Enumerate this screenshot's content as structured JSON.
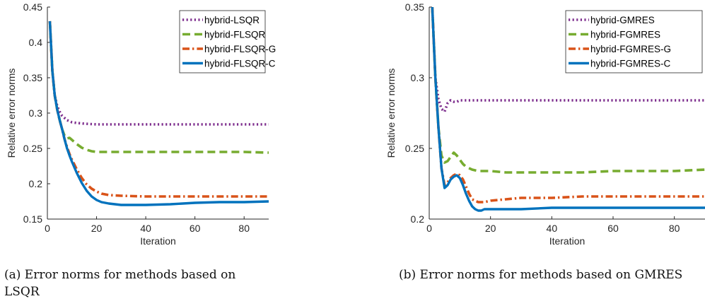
{
  "chart_data": [
    {
      "type": "line",
      "ylabel": "Relative error norms",
      "xlabel": "Iteration",
      "xlim": [
        0,
        90
      ],
      "ylim": [
        0.15,
        0.45
      ],
      "xticks": [
        0,
        20,
        40,
        60,
        80
      ],
      "yticks": [
        0.15,
        0.2,
        0.25,
        0.3,
        0.35,
        0.4,
        0.45
      ],
      "ytick_labels": [
        "0.15",
        "0.2",
        "0.25",
        "0.3",
        "0.35",
        "0.4",
        "0.45"
      ],
      "legend_position": "top-right",
      "grid": false,
      "caption": "(a) Error norms for methods based on LSQR",
      "series": [
        {
          "name": "hybrid-LSQR",
          "color": "#7e2f8e",
          "style": "dotted",
          "x": [
            1,
            2,
            3,
            4,
            5,
            6,
            8,
            10,
            12,
            15,
            20,
            25,
            30,
            40,
            50,
            60,
            70,
            80,
            90
          ],
          "y": [
            0.43,
            0.36,
            0.325,
            0.31,
            0.302,
            0.296,
            0.29,
            0.287,
            0.286,
            0.285,
            0.284,
            0.284,
            0.284,
            0.284,
            0.284,
            0.284,
            0.284,
            0.284,
            0.284
          ]
        },
        {
          "name": "hybrid-FLSQR",
          "color": "#77ac30",
          "style": "dashed",
          "x": [
            1,
            2,
            3,
            4,
            5,
            6,
            7,
            8,
            9,
            10,
            12,
            14,
            16,
            18,
            20,
            25,
            30,
            40,
            50,
            60,
            70,
            80,
            90
          ],
          "y": [
            0.43,
            0.36,
            0.325,
            0.305,
            0.29,
            0.277,
            0.268,
            0.264,
            0.265,
            0.262,
            0.256,
            0.251,
            0.248,
            0.246,
            0.245,
            0.245,
            0.245,
            0.245,
            0.245,
            0.245,
            0.245,
            0.245,
            0.244
          ]
        },
        {
          "name": "hybrid-FLSQR-G",
          "color": "#d95319",
          "style": "dashdot",
          "x": [
            1,
            2,
            3,
            4,
            5,
            6,
            7,
            8,
            9,
            10,
            12,
            14,
            16,
            18,
            20,
            22,
            25,
            30,
            40,
            50,
            60,
            70,
            80,
            90
          ],
          "y": [
            0.43,
            0.36,
            0.325,
            0.305,
            0.29,
            0.277,
            0.263,
            0.252,
            0.242,
            0.234,
            0.22,
            0.208,
            0.199,
            0.193,
            0.189,
            0.186,
            0.184,
            0.183,
            0.182,
            0.182,
            0.182,
            0.182,
            0.182,
            0.182
          ]
        },
        {
          "name": "hybrid-FLSQR-C",
          "color": "#0072bd",
          "style": "solid",
          "x": [
            1,
            2,
            3,
            4,
            5,
            6,
            7,
            8,
            9,
            10,
            12,
            14,
            16,
            18,
            20,
            22,
            25,
            30,
            35,
            40,
            50,
            60,
            70,
            80,
            90
          ],
          "y": [
            0.43,
            0.36,
            0.325,
            0.305,
            0.29,
            0.277,
            0.263,
            0.25,
            0.24,
            0.231,
            0.215,
            0.201,
            0.19,
            0.182,
            0.177,
            0.174,
            0.172,
            0.17,
            0.17,
            0.17,
            0.171,
            0.173,
            0.174,
            0.174,
            0.175
          ]
        }
      ]
    },
    {
      "type": "line",
      "ylabel": "Relative error norms",
      "xlabel": "Iteration",
      "xlim": [
        0,
        90
      ],
      "ylim": [
        0.2,
        0.35
      ],
      "xticks": [
        0,
        20,
        40,
        60,
        80
      ],
      "yticks": [
        0.2,
        0.25,
        0.3,
        0.35
      ],
      "ytick_labels": [
        "0.2",
        "0.25",
        "0.3",
        "0.35"
      ],
      "legend_position": "top-right",
      "grid": false,
      "caption": "(b) Error norms for methods based on GMRES",
      "series": [
        {
          "name": "hybrid-GMRES",
          "color": "#7e2f8e",
          "style": "dotted",
          "x": [
            1,
            2,
            3,
            4,
            5,
            6,
            7,
            8,
            9,
            10,
            15,
            20,
            30,
            40,
            50,
            60,
            70,
            80,
            90
          ],
          "y": [
            0.35,
            0.3,
            0.285,
            0.278,
            0.276,
            0.282,
            0.284,
            0.283,
            0.283,
            0.284,
            0.284,
            0.284,
            0.284,
            0.284,
            0.284,
            0.284,
            0.284,
            0.284,
            0.284
          ]
        },
        {
          "name": "hybrid-FGMRES",
          "color": "#77ac30",
          "style": "dashed",
          "x": [
            1,
            2,
            3,
            4,
            5,
            6,
            7,
            8,
            9,
            10,
            11,
            12,
            14,
            16,
            18,
            20,
            25,
            30,
            40,
            50,
            60,
            70,
            80,
            90
          ],
          "y": [
            0.35,
            0.3,
            0.265,
            0.245,
            0.24,
            0.241,
            0.244,
            0.247,
            0.245,
            0.242,
            0.239,
            0.237,
            0.235,
            0.234,
            0.234,
            0.234,
            0.233,
            0.233,
            0.233,
            0.233,
            0.234,
            0.234,
            0.234,
            0.235
          ]
        },
        {
          "name": "hybrid-FGMRES-G",
          "color": "#d95319",
          "style": "dashdot",
          "x": [
            1,
            2,
            3,
            4,
            5,
            6,
            7,
            8,
            9,
            10,
            11,
            12,
            13,
            14,
            16,
            18,
            20,
            25,
            30,
            40,
            50,
            60,
            70,
            80,
            90
          ],
          "y": [
            0.35,
            0.3,
            0.265,
            0.236,
            0.224,
            0.226,
            0.229,
            0.231,
            0.232,
            0.231,
            0.228,
            0.223,
            0.218,
            0.214,
            0.212,
            0.212,
            0.213,
            0.214,
            0.215,
            0.215,
            0.216,
            0.216,
            0.216,
            0.216,
            0.216
          ]
        },
        {
          "name": "hybrid-FGMRES-C",
          "color": "#0072bd",
          "style": "solid",
          "x": [
            1,
            2,
            3,
            4,
            5,
            6,
            7,
            8,
            9,
            10,
            11,
            12,
            13,
            14,
            15,
            16,
            17,
            18,
            20,
            25,
            30,
            40,
            50,
            60,
            70,
            80,
            90
          ],
          "y": [
            0.35,
            0.3,
            0.265,
            0.236,
            0.222,
            0.224,
            0.228,
            0.23,
            0.231,
            0.229,
            0.224,
            0.218,
            0.213,
            0.209,
            0.207,
            0.206,
            0.206,
            0.207,
            0.207,
            0.207,
            0.207,
            0.208,
            0.208,
            0.208,
            0.208,
            0.208,
            0.208
          ]
        }
      ]
    }
  ]
}
